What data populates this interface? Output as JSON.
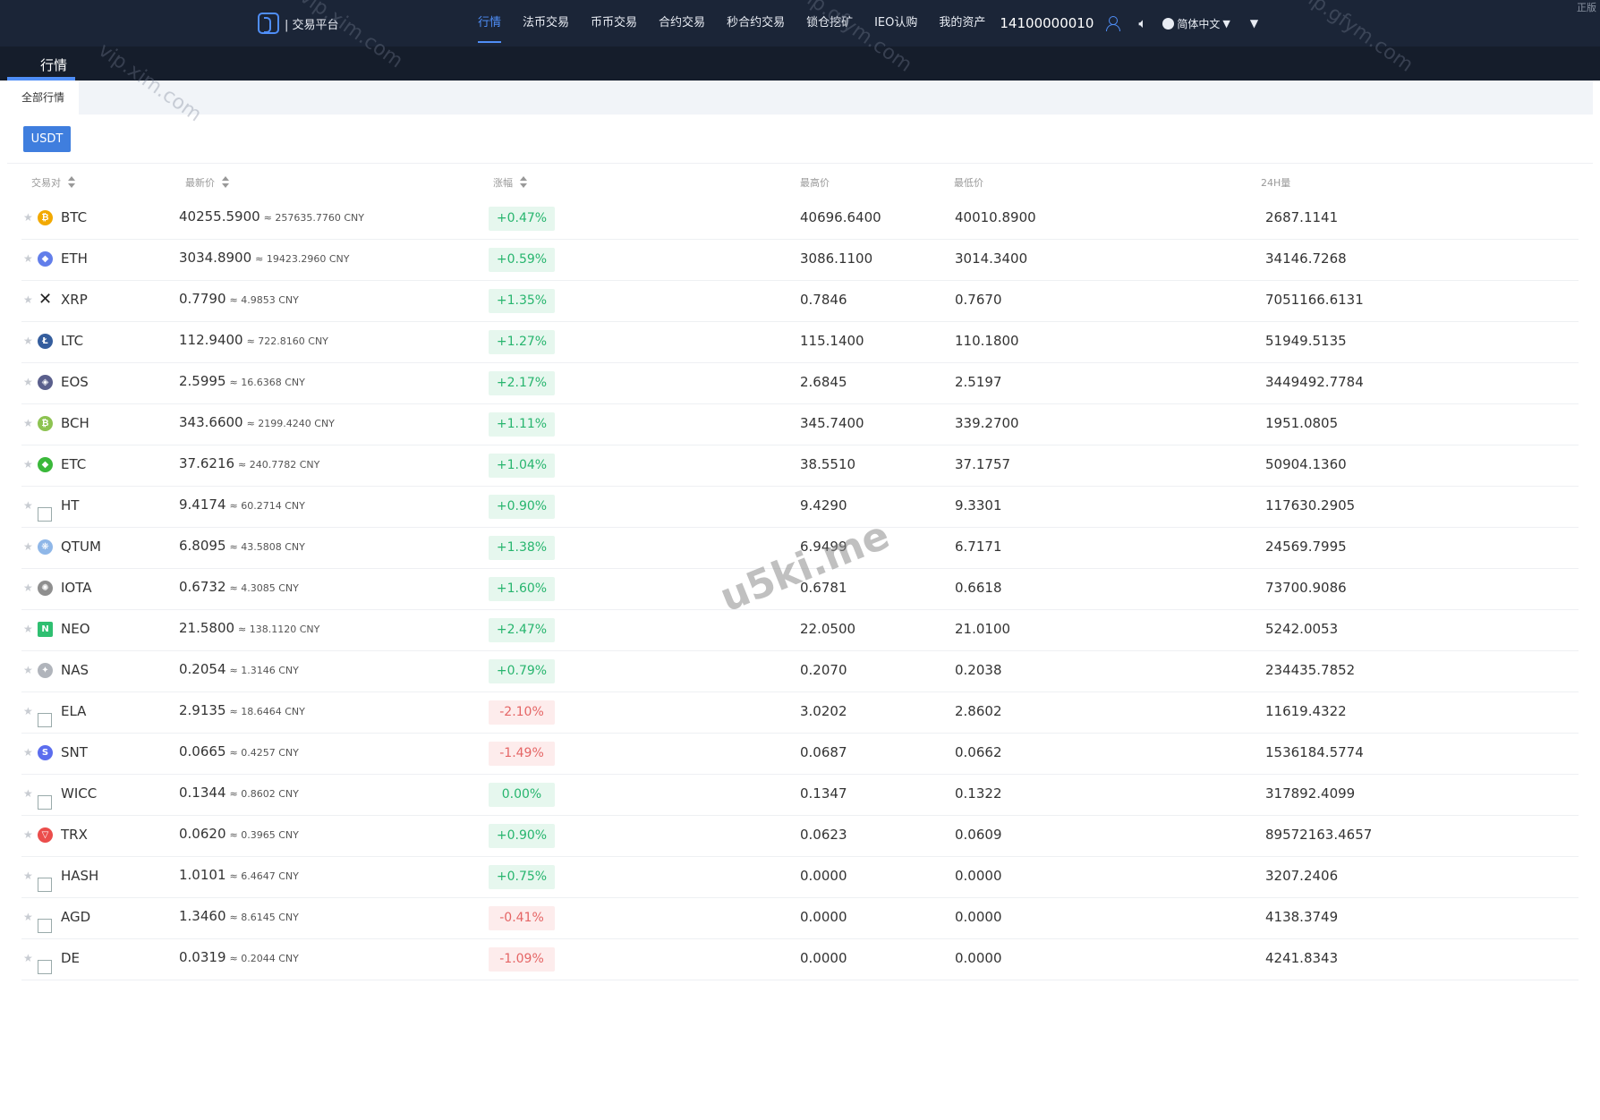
{
  "app": {
    "logo_icon": "platform-logo-icon",
    "logo_text": "| 交易平台",
    "nav": [
      "行情",
      "法币交易",
      "币币交易",
      "合约交易",
      "秒合约交易",
      "锁仓挖矿",
      "IEO认购",
      "我的资产"
    ],
    "active_nav": "行情",
    "account": "14100000010",
    "language": "简体中文",
    "corner_text": "正版",
    "colors": {
      "topbar": "#1b2537",
      "accent": "#4f8ef7",
      "up": "#27b56e",
      "down": "#e56565"
    }
  },
  "page": {
    "title_tab": "行情",
    "filter_tab": "全部行情",
    "quote_button": "USDT"
  },
  "table": {
    "headers": {
      "pair": "交易对",
      "last": "最新价",
      "change": "涨幅",
      "high": "最高价",
      "low": "最低价",
      "volume": "24H量"
    },
    "rows": [
      {
        "symbol": "BTC",
        "icon": "bitcoin-icon",
        "price": "40255.5900",
        "cny": "≈ 257635.7760 CNY",
        "change": "+0.47%",
        "dir": "up",
        "high": "40696.6400",
        "low": "40010.8900",
        "vol": "2687.1141"
      },
      {
        "symbol": "ETH",
        "icon": "ethereum-icon",
        "price": "3034.8900",
        "cny": "≈ 19423.2960 CNY",
        "change": "+0.59%",
        "dir": "up",
        "high": "3086.1100",
        "low": "3014.3400",
        "vol": "34146.7268"
      },
      {
        "symbol": "XRP",
        "icon": "ripple-icon",
        "price": "0.7790",
        "cny": "≈ 4.9853 CNY",
        "change": "+1.35%",
        "dir": "up",
        "high": "0.7846",
        "low": "0.7670",
        "vol": "7051166.6131"
      },
      {
        "symbol": "LTC",
        "icon": "litecoin-icon",
        "price": "112.9400",
        "cny": "≈ 722.8160 CNY",
        "change": "+1.27%",
        "dir": "up",
        "high": "115.1400",
        "low": "110.1800",
        "vol": "51949.5135"
      },
      {
        "symbol": "EOS",
        "icon": "eos-icon",
        "price": "2.5995",
        "cny": "≈ 16.6368 CNY",
        "change": "+2.17%",
        "dir": "up",
        "high": "2.6845",
        "low": "2.5197",
        "vol": "3449492.7784"
      },
      {
        "symbol": "BCH",
        "icon": "bitcoin-cash-icon",
        "price": "343.6600",
        "cny": "≈ 2199.4240 CNY",
        "change": "+1.11%",
        "dir": "up",
        "high": "345.7400",
        "low": "339.2700",
        "vol": "1951.0805"
      },
      {
        "symbol": "ETC",
        "icon": "ethereum-classic-icon",
        "price": "37.6216",
        "cny": "≈ 240.7782 CNY",
        "change": "+1.04%",
        "dir": "up",
        "high": "38.5510",
        "low": "37.1757",
        "vol": "50904.1360"
      },
      {
        "symbol": "HT",
        "icon": "broken-image-icon",
        "price": "9.4174",
        "cny": "≈ 60.2714 CNY",
        "change": "+0.90%",
        "dir": "up",
        "high": "9.4290",
        "low": "9.3301",
        "vol": "117630.2905"
      },
      {
        "symbol": "QTUM",
        "icon": "qtum-icon",
        "price": "6.8095",
        "cny": "≈ 43.5808 CNY",
        "change": "+1.38%",
        "dir": "up",
        "high": "6.9499",
        "low": "6.7171",
        "vol": "24569.7995"
      },
      {
        "symbol": "IOTA",
        "icon": "iota-icon",
        "price": "0.6732",
        "cny": "≈ 4.3085 CNY",
        "change": "+1.60%",
        "dir": "up",
        "high": "0.6781",
        "low": "0.6618",
        "vol": "73700.9086"
      },
      {
        "symbol": "NEO",
        "icon": "neo-icon",
        "price": "21.5800",
        "cny": "≈ 138.1120 CNY",
        "change": "+2.47%",
        "dir": "up",
        "high": "22.0500",
        "low": "21.0100",
        "vol": "5242.0053"
      },
      {
        "symbol": "NAS",
        "icon": "nebulas-icon",
        "price": "0.2054",
        "cny": "≈ 1.3146 CNY",
        "change": "+0.79%",
        "dir": "up",
        "high": "0.2070",
        "low": "0.2038",
        "vol": "234435.7852"
      },
      {
        "symbol": "ELA",
        "icon": "broken-image-icon",
        "price": "2.9135",
        "cny": "≈ 18.6464 CNY",
        "change": "-2.10%",
        "dir": "down",
        "high": "3.0202",
        "low": "2.8602",
        "vol": "11619.4322"
      },
      {
        "symbol": "SNT",
        "icon": "status-icon",
        "price": "0.0665",
        "cny": "≈ 0.4257 CNY",
        "change": "-1.49%",
        "dir": "down",
        "high": "0.0687",
        "low": "0.0662",
        "vol": "1536184.5774"
      },
      {
        "symbol": "WICC",
        "icon": "broken-image-icon",
        "price": "0.1344",
        "cny": "≈ 0.8602 CNY",
        "change": "0.00%",
        "dir": "up",
        "high": "0.1347",
        "low": "0.1322",
        "vol": "317892.4099"
      },
      {
        "symbol": "TRX",
        "icon": "tron-icon",
        "price": "0.0620",
        "cny": "≈ 0.3965 CNY",
        "change": "+0.90%",
        "dir": "up",
        "high": "0.0623",
        "low": "0.0609",
        "vol": "89572163.4657"
      },
      {
        "symbol": "HASH",
        "icon": "broken-image-icon",
        "price": "1.0101",
        "cny": "≈ 6.4647 CNY",
        "change": "+0.75%",
        "dir": "up",
        "high": "0.0000",
        "low": "0.0000",
        "vol": "3207.2406"
      },
      {
        "symbol": "AGD",
        "icon": "broken-image-icon",
        "price": "1.3460",
        "cny": "≈ 8.6145 CNY",
        "change": "-0.41%",
        "dir": "down",
        "high": "0.0000",
        "low": "0.0000",
        "vol": "4138.3749"
      },
      {
        "symbol": "DE",
        "icon": "broken-image-icon",
        "price": "0.0319",
        "cny": "≈ 0.2044 CNY",
        "change": "-1.09%",
        "dir": "down",
        "high": "0.0000",
        "low": "0.0000",
        "vol": "4241.8343"
      }
    ]
  },
  "watermarks": {
    "center": "u5ki.me",
    "diagonal": [
      "vip.xim.com",
      "vip.xim.com",
      "vip.gfym.com",
      "vip.gfym.com"
    ]
  }
}
